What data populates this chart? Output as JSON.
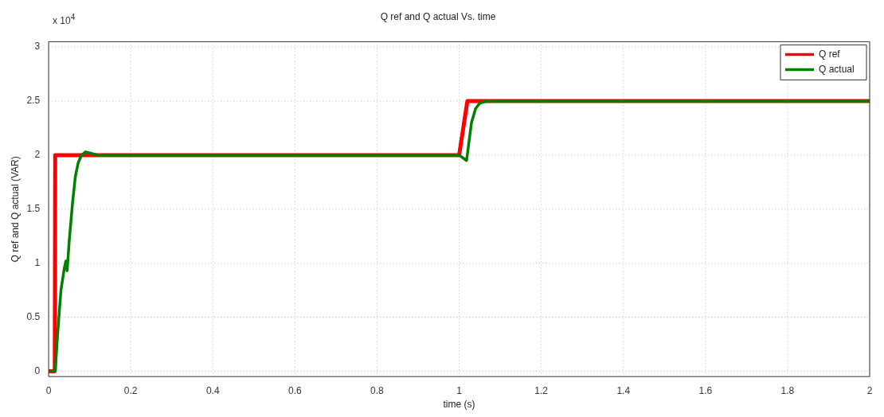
{
  "chart_data": {
    "type": "line",
    "title": "Q ref and Q actual Vs. time",
    "xlabel": "time (s)",
    "ylabel": "Q ref and Q actual (VAR)",
    "annotations": [
      "x 10$^{4}$"
    ],
    "xlim": [
      0,
      2
    ],
    "xticks": [
      0,
      0.2,
      0.4,
      0.6,
      0.8,
      1,
      1.2,
      1.4,
      1.6,
      1.8,
      2
    ],
    "ylim": [
      -0.05,
      3.05
    ],
    "yticks": [
      0,
      0.5,
      1,
      1.5,
      2,
      2.5,
      3
    ],
    "grid": true,
    "legend": "top right",
    "line_style": "solid",
    "marker": "none",
    "series": [
      {
        "name": "Q ref",
        "color": "#ff0000",
        "x": [
          0,
          0.015,
          0.016,
          1.0,
          1.02,
          2
        ],
        "values": [
          0,
          0,
          2,
          2,
          2.5,
          2.5
        ]
      },
      {
        "name": "Q actual",
        "color": "#008000",
        "x": [
          0,
          0.016,
          0.022,
          0.03,
          0.038,
          0.042,
          0.045,
          0.05,
          0.058,
          0.065,
          0.072,
          0.08,
          0.09,
          0.1,
          0.12,
          1.0,
          1.018,
          1.03,
          1.04,
          1.05,
          1.065,
          2
        ],
        "values": [
          0,
          0,
          0.35,
          0.75,
          0.95,
          1.02,
          0.93,
          1.2,
          1.55,
          1.8,
          1.93,
          2,
          2.03,
          2.02,
          2,
          2,
          1.95,
          2.3,
          2.43,
          2.48,
          2.5,
          2.5
        ]
      }
    ]
  }
}
